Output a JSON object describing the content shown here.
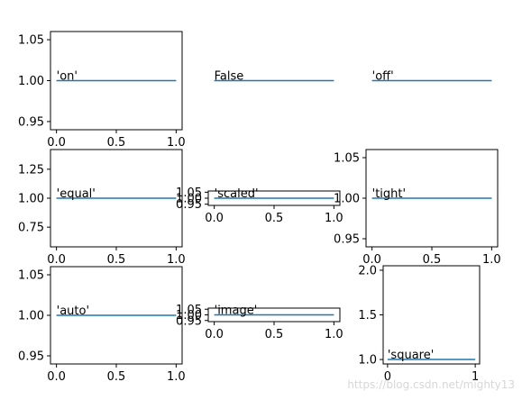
{
  "chart_data": [
    {
      "type": "line",
      "annotation": "'on'",
      "series": [
        {
          "x": [
            0,
            1
          ],
          "y": [
            1,
            1
          ]
        }
      ],
      "xlim": [
        -0.05,
        1.05
      ],
      "ylim": [
        0.94,
        1.06
      ],
      "xticks": [
        "0.0",
        "0.5",
        "1.0"
      ],
      "yticks": [
        "0.95",
        "1.00",
        "1.05"
      ],
      "axes_visible": true
    },
    {
      "type": "line",
      "annotation": "False",
      "series": [
        {
          "x": [
            0,
            1
          ],
          "y": [
            1,
            1
          ]
        }
      ],
      "xlim": [
        -0.05,
        1.05
      ],
      "ylim": [
        0.94,
        1.06
      ],
      "xticks": [],
      "yticks": [],
      "axes_visible": false
    },
    {
      "type": "line",
      "annotation": "'off'",
      "series": [
        {
          "x": [
            0,
            1
          ],
          "y": [
            1,
            1
          ]
        }
      ],
      "xlim": [
        -0.05,
        1.05
      ],
      "ylim": [
        0.94,
        1.06
      ],
      "xticks": [],
      "yticks": [],
      "axes_visible": false
    },
    {
      "type": "line",
      "annotation": "'equal'",
      "series": [
        {
          "x": [
            0,
            1
          ],
          "y": [
            1,
            1
          ]
        }
      ],
      "xlim": [
        -0.05,
        1.05
      ],
      "ylim": [
        0.58,
        1.42
      ],
      "xticks": [
        "0.0",
        "0.5",
        "1.0"
      ],
      "yticks": [
        "0.75",
        "1.00",
        "1.25"
      ],
      "axes_visible": true
    },
    {
      "type": "line",
      "annotation": "'scaled'",
      "series": [
        {
          "x": [
            0,
            1
          ],
          "y": [
            1,
            1
          ]
        }
      ],
      "xlim": [
        -0.05,
        1.05
      ],
      "ylim": [
        0.94,
        1.06
      ],
      "xticks": [
        "0.0",
        "0.5",
        "1.0"
      ],
      "yticks": [
        "0.95",
        "1.00",
        "1.05"
      ],
      "axes_visible": true
    },
    {
      "type": "line",
      "annotation": "'tight'",
      "series": [
        {
          "x": [
            0,
            1
          ],
          "y": [
            1,
            1
          ]
        }
      ],
      "xlim": [
        -0.05,
        1.05
      ],
      "ylim": [
        0.94,
        1.06
      ],
      "xticks": [
        "0.0",
        "0.5",
        "1.0"
      ],
      "yticks": [
        "0.95",
        "1.00",
        "1.05"
      ],
      "axes_visible": true
    },
    {
      "type": "line",
      "annotation": "'auto'",
      "series": [
        {
          "x": [
            0,
            1
          ],
          "y": [
            1,
            1
          ]
        }
      ],
      "xlim": [
        -0.05,
        1.05
      ],
      "ylim": [
        0.94,
        1.06
      ],
      "xticks": [
        "0.0",
        "0.5",
        "1.0"
      ],
      "yticks": [
        "0.95",
        "1.00",
        "1.05"
      ],
      "axes_visible": true
    },
    {
      "type": "line",
      "annotation": "'image'",
      "series": [
        {
          "x": [
            0,
            1
          ],
          "y": [
            1,
            1
          ]
        }
      ],
      "xlim": [
        -0.05,
        1.05
      ],
      "ylim": [
        0.94,
        1.06
      ],
      "xticks": [
        "0.0",
        "0.5",
        "1.0"
      ],
      "yticks": [
        "0.95",
        "1.00",
        "1.05"
      ],
      "axes_visible": true
    },
    {
      "type": "line",
      "annotation": "'square'",
      "series": [
        {
          "x": [
            0,
            1
          ],
          "y": [
            1,
            1
          ]
        }
      ],
      "xlim": [
        -0.05,
        1.05
      ],
      "ylim": [
        0.95,
        2.05
      ],
      "xticks": [
        "0",
        "1"
      ],
      "yticks": [
        "1.0",
        "1.5",
        "2.0"
      ],
      "axes_visible": true
    }
  ],
  "line_color": "#1f77b4",
  "watermark": "https://blog.csdn.net/mighty13"
}
